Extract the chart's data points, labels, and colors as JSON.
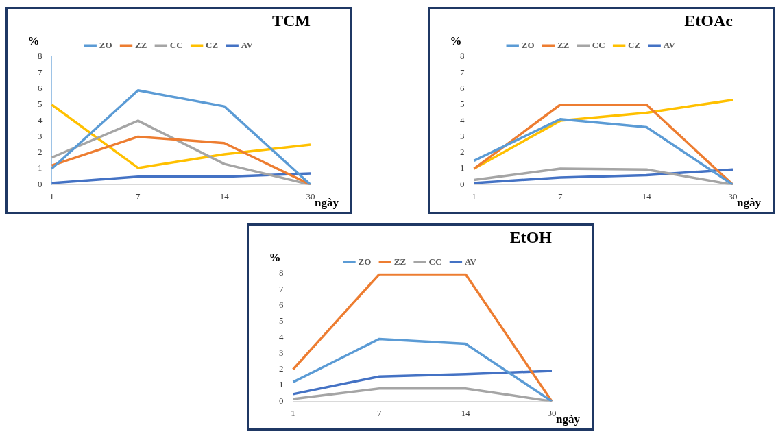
{
  "chart_data": [
    {
      "type": "line",
      "title": "TCM",
      "xlabel": "ngày",
      "ylabel": "%",
      "categories": [
        "1",
        "7",
        "14",
        "30"
      ],
      "ylim": [
        0,
        8
      ],
      "yticks": [
        0,
        1,
        2,
        3,
        4,
        5,
        6,
        7,
        8
      ],
      "grid": false,
      "legend": "top",
      "marker": "none",
      "line_style": "solid",
      "series": [
        {
          "name": "ZO",
          "color": "#5b9bd5",
          "values": [
            1,
            5.9,
            4.9,
            0
          ]
        },
        {
          "name": "ZZ",
          "color": "#ed7d31",
          "values": [
            1.2,
            3,
            2.6,
            0
          ]
        },
        {
          "name": "CC",
          "color": "#a5a5a5",
          "values": [
            1.7,
            4,
            1.3,
            0
          ]
        },
        {
          "name": "CZ",
          "color": "#ffc000",
          "values": [
            5,
            1.05,
            1.9,
            2.5
          ]
        },
        {
          "name": "AV",
          "color": "#4472c4",
          "values": [
            0.1,
            0.5,
            0.5,
            0.7
          ]
        }
      ]
    },
    {
      "type": "line",
      "title": "EtOAc",
      "xlabel": "ngày",
      "ylabel": "%",
      "categories": [
        "1",
        "7",
        "14",
        "30"
      ],
      "ylim": [
        0,
        8
      ],
      "yticks": [
        0,
        1,
        2,
        3,
        4,
        5,
        6,
        7,
        8
      ],
      "grid": false,
      "legend": "top",
      "marker": "none",
      "line_style": "solid",
      "series": [
        {
          "name": "ZO",
          "color": "#5b9bd5",
          "values": [
            1.5,
            4.1,
            3.6,
            0
          ]
        },
        {
          "name": "ZZ",
          "color": "#ed7d31",
          "values": [
            1,
            5,
            5,
            0
          ]
        },
        {
          "name": "CC",
          "color": "#a5a5a5",
          "values": [
            0.3,
            1,
            0.95,
            0
          ]
        },
        {
          "name": "CZ",
          "color": "#ffc000",
          "values": [
            1,
            4,
            4.5,
            5.3
          ]
        },
        {
          "name": "AV",
          "color": "#4472c4",
          "values": [
            0.1,
            0.45,
            0.6,
            0.95
          ]
        }
      ]
    },
    {
      "type": "line",
      "title": "EtOH",
      "xlabel": "ngày",
      "ylabel": "%",
      "categories": [
        "1",
        "7",
        "14",
        "30"
      ],
      "ylim": [
        0,
        8
      ],
      "yticks": [
        0,
        1,
        2,
        3,
        4,
        5,
        6,
        7,
        8
      ],
      "grid": false,
      "legend": "top",
      "marker": "none",
      "line_style": "solid",
      "series": [
        {
          "name": "ZO",
          "color": "#5b9bd5",
          "values": [
            1.2,
            3.9,
            3.6,
            0
          ]
        },
        {
          "name": "ZZ",
          "color": "#ed7d31",
          "values": [
            2,
            7.95,
            7.95,
            0
          ]
        },
        {
          "name": "CC",
          "color": "#a5a5a5",
          "values": [
            0.15,
            0.8,
            0.8,
            0
          ]
        },
        {
          "name": "AV",
          "color": "#4472c4",
          "values": [
            0.45,
            1.55,
            1.7,
            1.9
          ]
        }
      ]
    }
  ]
}
